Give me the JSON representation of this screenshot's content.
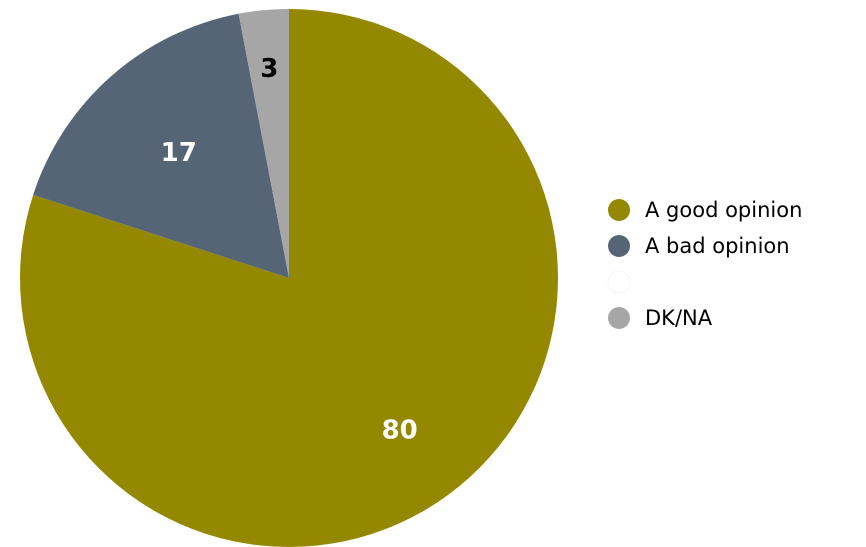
{
  "chart_data": {
    "type": "pie",
    "title": "",
    "categories": [
      "A good opinion",
      "A bad opinion",
      "",
      "DK/NA"
    ],
    "values": [
      80,
      17,
      0,
      3
    ],
    "data_labels": [
      "80",
      "17",
      "",
      "3"
    ],
    "colors": [
      "#948800",
      "#566575",
      "#ffffff",
      "#a6a6a6"
    ],
    "label_colors": [
      "#ffffff",
      "#ffffff",
      "#000000",
      "#000000"
    ],
    "legend_position": "right",
    "start_angle": "12 o'clock",
    "direction": "clockwise"
  }
}
